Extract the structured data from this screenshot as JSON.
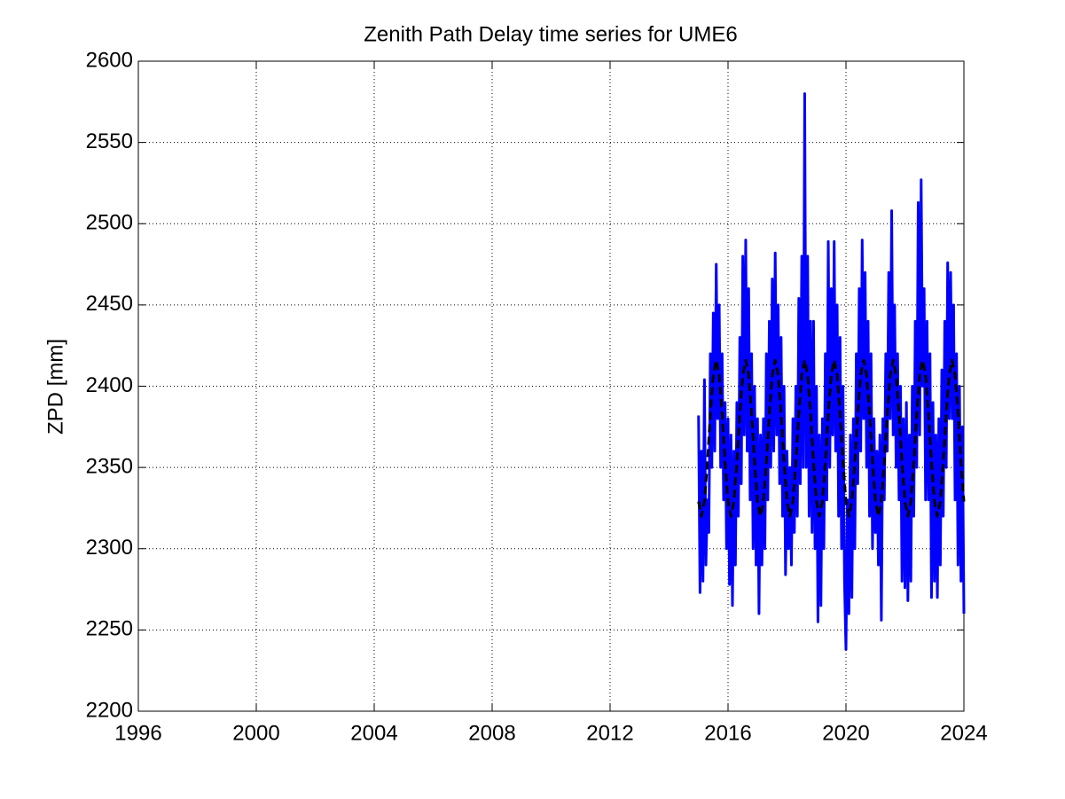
{
  "chart_data": {
    "type": "line",
    "title": "Zenith Path Delay time series for UME6",
    "ylabel": "ZPD [mm]",
    "xlim": [
      1996,
      2024
    ],
    "xticks": [
      1996,
      2000,
      2004,
      2008,
      2012,
      2016,
      2020,
      2024
    ],
    "ylim": [
      2200,
      2600
    ],
    "yticks": [
      2200,
      2250,
      2300,
      2350,
      2400,
      2450,
      2500,
      2550,
      2600
    ],
    "grid": true,
    "series": [
      {
        "color": "#0000ff",
        "style": "solid",
        "x": [
          2015,
          2015.05,
          2015.1,
          2015.15,
          2015.2,
          2015.25,
          2015.3,
          2015.35,
          2015.4,
          2015.45,
          2015.5,
          2015.55,
          2015.6,
          2015.65,
          2015.7,
          2015.75,
          2015.8,
          2015.85,
          2015.9,
          2015.95,
          2016,
          2016.05,
          2016.1,
          2016.15,
          2016.2,
          2016.25,
          2016.3,
          2016.35,
          2016.4,
          2016.45,
          2016.5,
          2016.55,
          2016.6,
          2016.65,
          2016.7,
          2016.75,
          2016.8,
          2016.85,
          2016.9,
          2016.95,
          2017,
          2017.05,
          2017.1,
          2017.15,
          2017.2,
          2017.25,
          2017.3,
          2017.35,
          2017.4,
          2017.45,
          2017.5,
          2017.55,
          2017.6,
          2017.65,
          2017.7,
          2017.75,
          2017.8,
          2017.85,
          2017.9,
          2017.95,
          2018,
          2018.05,
          2018.1,
          2018.15,
          2018.2,
          2018.25,
          2018.3,
          2018.35,
          2018.4,
          2018.45,
          2018.5,
          2018.55,
          2018.6,
          2018.65,
          2018.7,
          2018.75,
          2018.8,
          2018.85,
          2018.9,
          2018.95,
          2019,
          2019.05,
          2019.1,
          2019.15,
          2019.2,
          2019.25,
          2019.3,
          2019.35,
          2019.4,
          2019.45,
          2019.5,
          2019.55,
          2019.6,
          2019.65,
          2019.7,
          2019.75,
          2019.8,
          2019.85,
          2019.9,
          2019.95,
          2020,
          2020.05,
          2020.1,
          2020.15,
          2020.2,
          2020.25,
          2020.3,
          2020.35,
          2020.4,
          2020.45,
          2020.5,
          2020.55,
          2020.6,
          2020.65,
          2020.7,
          2020.75,
          2020.8,
          2020.85,
          2020.9,
          2020.95,
          2021,
          2021.05,
          2021.1,
          2021.15,
          2021.2,
          2021.25,
          2021.3,
          2021.35,
          2021.4,
          2021.45,
          2021.5,
          2021.55,
          2021.6,
          2021.65,
          2021.7,
          2021.75,
          2021.8,
          2021.85,
          2021.9,
          2021.95,
          2022,
          2022.05,
          2022.1,
          2022.15,
          2022.2,
          2022.25,
          2022.3,
          2022.35,
          2022.4,
          2022.45,
          2022.5,
          2022.55,
          2022.6,
          2022.65,
          2022.7,
          2022.75,
          2022.8,
          2022.85,
          2022.9,
          2022.95,
          2023,
          2023.05,
          2023.1,
          2023.15,
          2023.2,
          2023.25,
          2023.3,
          2023.35,
          2023.4,
          2023.45,
          2023.5,
          2023.55,
          2023.6,
          2023.65,
          2023.7,
          2023.75,
          2023.8,
          2023.85,
          2023.9,
          2023.95,
          2024
        ],
        "values": [
          2382,
          2273,
          2360,
          2280,
          2404,
          2290,
          2330,
          2310,
          2420,
          2350,
          2445,
          2360,
          2475,
          2380,
          2450,
          2350,
          2420,
          2330,
          2390,
          2300,
          2380,
          2278,
          2370,
          2265,
          2360,
          2290,
          2390,
          2320,
          2430,
          2340,
          2480,
          2370,
          2490,
          2360,
          2460,
          2330,
          2420,
          2300,
          2400,
          2290,
          2380,
          2260,
          2370,
          2290,
          2380,
          2300,
          2420,
          2330,
          2440,
          2350,
          2466,
          2360,
          2482,
          2370,
          2450,
          2340,
          2430,
          2320,
          2400,
          2284,
          2360,
          2300,
          2350,
          2290,
          2380,
          2310,
          2400,
          2320,
          2454,
          2340,
          2480,
          2350,
          2580,
          2350,
          2480,
          2320,
          2440,
          2310,
          2440,
          2300,
          2400,
          2255,
          2370,
          2265,
          2380,
          2300,
          2420,
          2330,
          2489,
          2350,
          2460,
          2370,
          2489,
          2360,
          2450,
          2320,
          2430,
          2300,
          2400,
          2280,
          2238,
          2330,
          2260,
          2370,
          2270,
          2380,
          2300,
          2420,
          2340,
          2460,
          2360,
          2490,
          2380,
          2470,
          2350,
          2440,
          2320,
          2420,
          2300,
          2380,
          2310,
          2360,
          2290,
          2370,
          2256,
          2380,
          2330,
          2420,
          2360,
          2470,
          2380,
          2508,
          2370,
          2450,
          2350,
          2420,
          2330,
          2400,
          2280,
          2380,
          2276,
          2390,
          2268,
          2370,
          2280,
          2400,
          2320,
          2440,
          2350,
          2513,
          2370,
          2527,
          2400,
          2460,
          2330,
          2440,
          2330,
          2420,
          2270,
          2390,
          2280,
          2370,
          2270,
          2380,
          2290,
          2410,
          2320,
          2440,
          2350,
          2476,
          2380,
          2470,
          2380,
          2450,
          2330,
          2420,
          2290,
          2400,
          2280,
          2375,
          2260
        ]
      },
      {
        "color": "#000000",
        "style": "dashed",
        "x": [
          2015,
          2015.1,
          2015.2,
          2015.3,
          2015.4,
          2015.5,
          2015.6,
          2015.7,
          2015.8,
          2015.9,
          2016,
          2016.1,
          2016.2,
          2016.3,
          2016.4,
          2016.5,
          2016.6,
          2016.7,
          2016.8,
          2016.9,
          2017,
          2017.1,
          2017.2,
          2017.3,
          2017.4,
          2017.5,
          2017.6,
          2017.7,
          2017.8,
          2017.9,
          2018,
          2018.1,
          2018.2,
          2018.3,
          2018.4,
          2018.5,
          2018.6,
          2018.7,
          2018.8,
          2018.9,
          2019,
          2019.1,
          2019.2,
          2019.3,
          2019.4,
          2019.5,
          2019.6,
          2019.7,
          2019.8,
          2019.9,
          2020,
          2020.1,
          2020.2,
          2020.3,
          2020.4,
          2020.5,
          2020.6,
          2020.7,
          2020.8,
          2020.9,
          2021,
          2021.1,
          2021.2,
          2021.3,
          2021.4,
          2021.5,
          2021.6,
          2021.7,
          2021.8,
          2021.9,
          2022,
          2022.1,
          2022.2,
          2022.3,
          2022.4,
          2022.5,
          2022.6,
          2022.7,
          2022.8,
          2022.9,
          2023,
          2023.1,
          2023.2,
          2023.3,
          2023.4,
          2023.5,
          2023.6,
          2023.7,
          2023.8,
          2023.9,
          2024
        ],
        "values": [
          2329,
          2320,
          2329,
          2353,
          2383,
          2407,
          2416,
          2407,
          2383,
          2353,
          2329,
          2320,
          2329,
          2353,
          2383,
          2407,
          2416,
          2407,
          2383,
          2353,
          2329,
          2320,
          2329,
          2353,
          2383,
          2407,
          2416,
          2407,
          2383,
          2353,
          2329,
          2320,
          2329,
          2353,
          2383,
          2407,
          2416,
          2407,
          2383,
          2353,
          2329,
          2320,
          2329,
          2353,
          2383,
          2407,
          2416,
          2407,
          2383,
          2353,
          2329,
          2320,
          2329,
          2353,
          2383,
          2407,
          2416,
          2407,
          2383,
          2353,
          2329,
          2320,
          2329,
          2353,
          2383,
          2407,
          2416,
          2407,
          2383,
          2353,
          2329,
          2320,
          2329,
          2353,
          2383,
          2407,
          2416,
          2407,
          2383,
          2353,
          2329,
          2320,
          2329,
          2353,
          2383,
          2407,
          2416,
          2407,
          2383,
          2353,
          2329
        ]
      }
    ]
  }
}
